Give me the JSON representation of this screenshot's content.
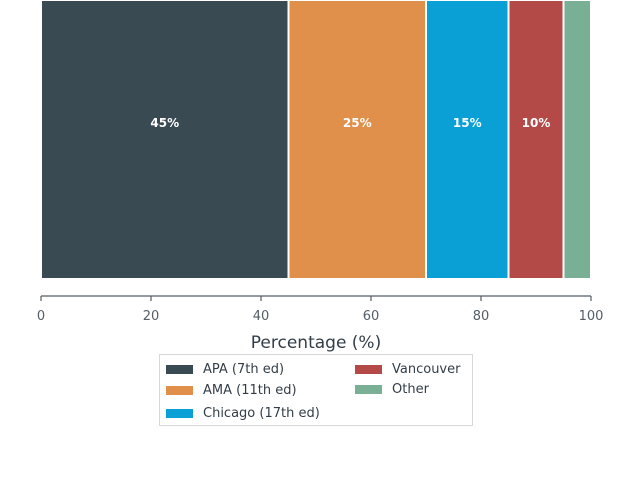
{
  "chart_data": {
    "type": "bar",
    "orientation": "horizontal-stacked",
    "categories": [
      "APA (7th ed)",
      "AMA (11th ed)",
      "Chicago (17th ed)",
      "Vancouver",
      "Other"
    ],
    "values": [
      45,
      25,
      15,
      10,
      5
    ],
    "data_labels": [
      "45%",
      "25%",
      "15%",
      "10%",
      ""
    ],
    "colors": [
      "#3a4a52",
      "#e0904a",
      "#0aa0d6",
      "#b34a48",
      "#79af95"
    ],
    "xlabel": "Percentage (%)",
    "xlim": [
      0,
      100
    ],
    "xticks": [
      0,
      20,
      40,
      60,
      80,
      100
    ],
    "grid": false,
    "legend_placement": "bottom-center"
  },
  "legend": {
    "items": [
      {
        "label": "APA (7th ed)",
        "color": "#3a4a52"
      },
      {
        "label": "AMA (11th ed)",
        "color": "#e0904a"
      },
      {
        "label": "Chicago (17th ed)",
        "color": "#0aa0d6"
      },
      {
        "label": "Vancouver",
        "color": "#b34a48"
      },
      {
        "label": "Other",
        "color": "#79af95"
      }
    ]
  }
}
